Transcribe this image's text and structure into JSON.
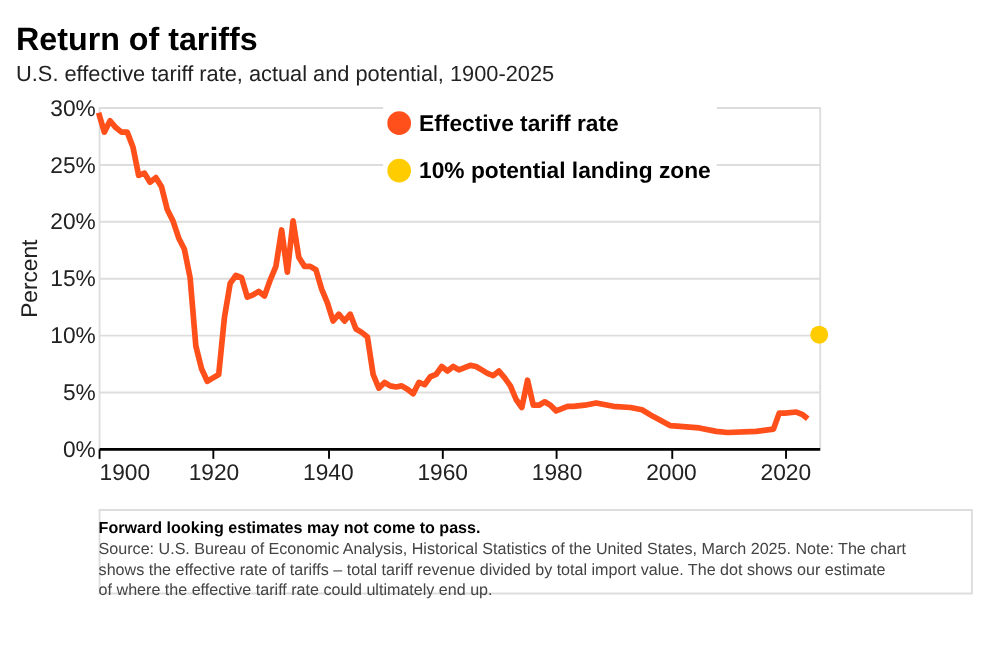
{
  "chart_data": {
    "type": "line",
    "title": "Return of tariffs",
    "subtitle": "U.S. effective tariff rate, actual and potential, 1900-2025",
    "ylabel": "Percent",
    "series": [
      {
        "name": "Effective tariff rate",
        "color": "#ff4f1a",
        "marker": "none",
        "x": [
          1900,
          1901,
          1902,
          1903,
          1904,
          1905,
          1906,
          1907,
          1908,
          1909,
          1910,
          1911,
          1912,
          1913,
          1914,
          1915,
          1916,
          1917,
          1918,
          1919,
          1920,
          1921,
          1922,
          1923,
          1924,
          1925,
          1926,
          1927,
          1928,
          1929,
          1930,
          1931,
          1932,
          1933,
          1934,
          1935,
          1936,
          1937,
          1938,
          1939,
          1940,
          1941,
          1942,
          1943,
          1944,
          1945,
          1946,
          1947,
          1948,
          1949,
          1950,
          1951,
          1952,
          1953,
          1954,
          1955,
          1956,
          1957,
          1958,
          1959,
          1960,
          1961,
          1962,
          1963,
          1964,
          1965,
          1966,
          1967,
          1968,
          1969,
          1970,
          1971,
          1972,
          1973,
          1974,
          1975,
          1976,
          1977,
          1978,
          1979,
          1980,
          1981,
          1982,
          1983,
          1985,
          1987,
          1990,
          1993,
          1995,
          1997,
          2000,
          2005,
          2008,
          2010,
          2015,
          2018,
          2019,
          2020,
          2022,
          2023,
          2024
        ],
        "values": [
          29.5,
          27.8,
          28.8,
          28.2,
          27.8,
          27.8,
          26.5,
          24,
          24.2,
          23.4,
          23.8,
          23,
          21,
          20,
          18.5,
          17.5,
          15,
          9,
          7,
          5.9,
          6.2,
          6.5,
          11.5,
          14.5,
          15.2,
          15,
          13.3,
          13.5,
          13.8,
          13.4,
          14.8,
          16,
          19.2,
          15.5,
          20,
          16.8,
          16,
          16,
          15.7,
          14,
          12.8,
          11.2,
          11.8,
          11.2,
          11.8,
          10.5,
          10.2,
          9.8,
          6.5,
          5.3,
          5.8,
          5.5,
          5.4,
          5.5,
          5.2,
          4.8,
          5.8,
          5.6,
          6.3,
          6.5,
          7.2,
          6.8,
          7.2,
          6.9,
          7.1,
          7.3,
          7.2,
          6.9,
          6.6,
          6.4,
          6.8,
          6.2,
          5.5,
          4.3,
          3.6,
          6.0,
          3.8,
          3.8,
          4.1,
          3.8,
          3.3,
          3.5,
          3.7,
          3.7,
          3.8,
          4.0,
          3.7,
          3.6,
          3.4,
          2.8,
          2.0,
          1.8,
          1.5,
          1.4,
          1.5,
          1.7,
          3.1,
          3.1,
          3.2,
          3.0,
          2.6
        ]
      },
      {
        "name": "10% potential landing zone",
        "color": "#ffcc00",
        "type": "scatter",
        "marker": "circle",
        "x": [
          2026
        ],
        "values": [
          10
        ]
      }
    ],
    "xlim": [
      1900,
      2026
    ],
    "xticks": [
      1900,
      1920,
      1940,
      1960,
      1980,
      2000,
      2020
    ],
    "ylim": [
      0,
      30
    ],
    "yticks": [
      {
        "value": 0,
        "label": "0%"
      },
      {
        "value": 5,
        "label": "5%"
      },
      {
        "value": 10,
        "label": "10%"
      },
      {
        "value": 15,
        "label": "15%"
      },
      {
        "value": 20,
        "label": "20%"
      },
      {
        "value": 25,
        "label": "25%"
      },
      {
        "value": 30,
        "label": "30%"
      }
    ],
    "grid": "y",
    "legend": "top right",
    "annotations": [
      "Forward looking estimates may not come to pass.",
      "Source: U.S. Bureau of Economic Analysis, Historical Statistics of the United States, March 2025. Note: The chart shows the effective rate of tariffs – total tariff revenue divided by total import value. The dot shows our estimate of where the effective tariff rate could ultimately end up."
    ]
  }
}
